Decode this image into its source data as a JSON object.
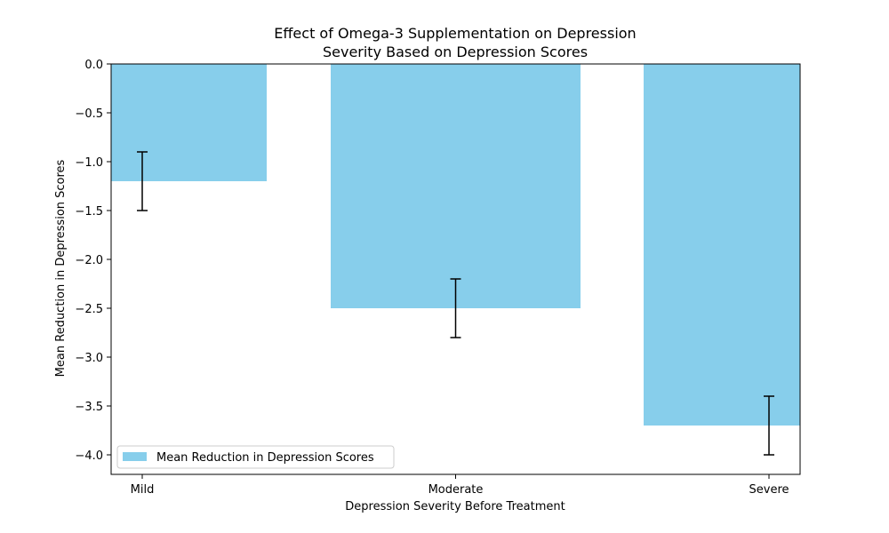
{
  "chart_data": {
    "type": "bar",
    "title_lines": [
      "Effect of Omega-3 Supplementation on Depression",
      "Severity Based on Depression Scores"
    ],
    "xlabel": "Depression Severity Before Treatment",
    "ylabel": "Mean Reduction in Depression Scores",
    "categories": [
      "Mild",
      "Moderate",
      "Severe"
    ],
    "values": [
      -1.2,
      -2.5,
      -3.7
    ],
    "error_bars": [
      0.3,
      0.3,
      0.3
    ],
    "ylim": [
      -4.2,
      0.0
    ],
    "yticks": [
      0.0,
      -0.5,
      -1.0,
      -1.5,
      -2.0,
      -2.5,
      -3.0,
      -3.5,
      -4.0
    ],
    "ytick_labels": [
      "0.0",
      "−0.5",
      "−1.0",
      "−1.5",
      "−2.0",
      "−2.5",
      "−3.0",
      "−3.5",
      "−4.0"
    ],
    "legend": {
      "label": "Mean Reduction in Depression Scores",
      "placement": "lower-left"
    },
    "bar_color": "#87ceeb",
    "error_color": "#000000"
  }
}
